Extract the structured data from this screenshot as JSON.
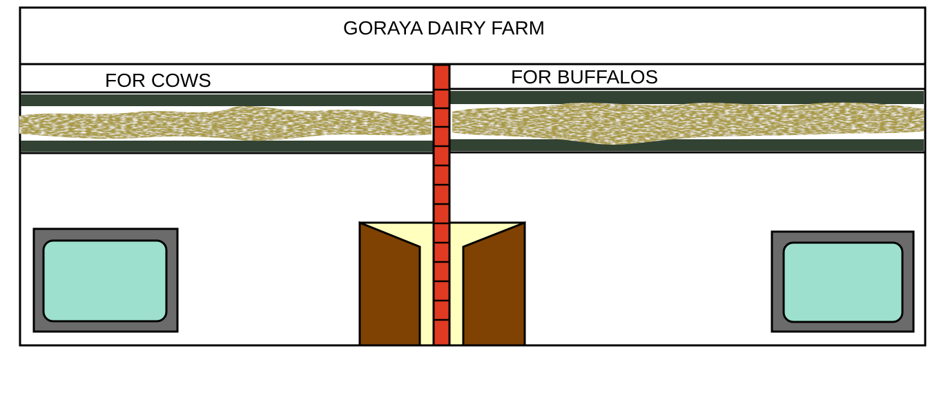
{
  "header": {
    "title": "GORAYA DAIRY FARM"
  },
  "sections": {
    "cows": {
      "label": "FOR COWS"
    },
    "buffalos": {
      "label": "FOR BUFFALOS"
    }
  },
  "colors": {
    "outline": "#000000",
    "roof_band": "#324233",
    "straw": "#a89a45",
    "brick": "#e03a22",
    "door": "#7f4202",
    "doorway_light": "#ffffbe",
    "window_frame": "#6b6b6b",
    "window_glass": "#9ce0cd"
  }
}
